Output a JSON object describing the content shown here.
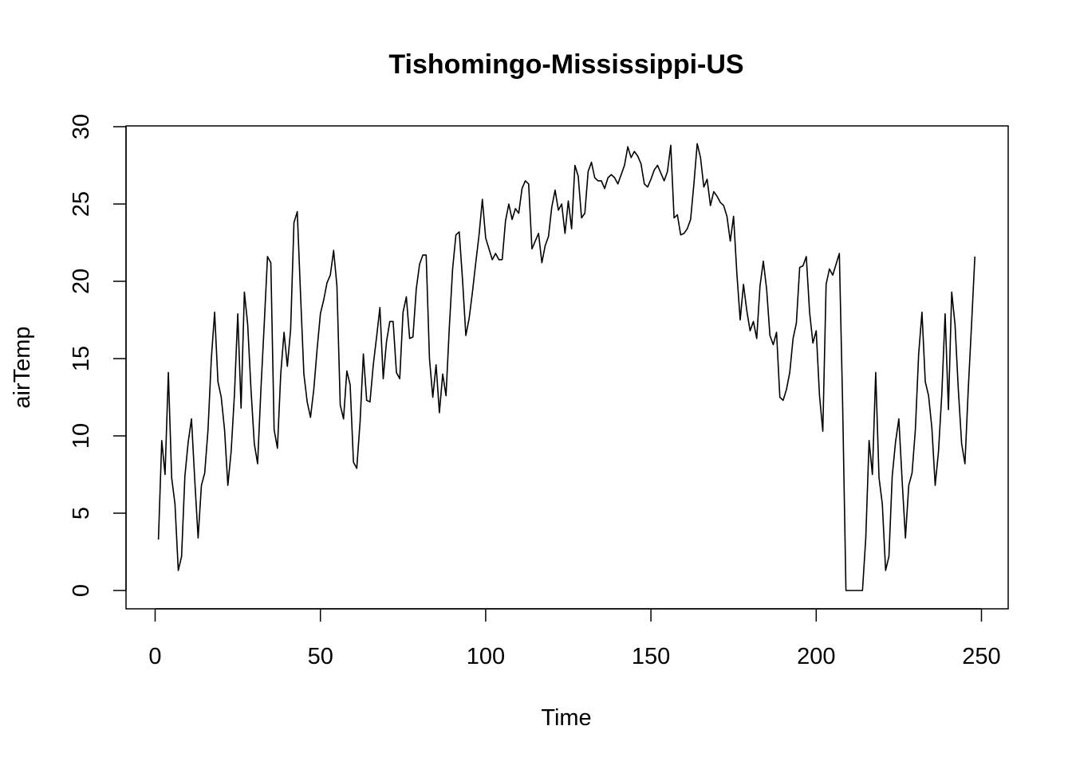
{
  "chart_data": {
    "type": "line",
    "title": "Tishomingo-Mississippi-US",
    "xlabel": "Time",
    "ylabel": "airTemp",
    "xlim": [
      1,
      248
    ],
    "ylim": [
      0,
      29
    ],
    "x_ticks": [
      0,
      50,
      100,
      150,
      200,
      250
    ],
    "y_ticks": [
      0,
      5,
      10,
      15,
      20,
      25,
      30
    ],
    "x_tick_labels": [
      "0",
      "50",
      "100",
      "150",
      "200",
      "250"
    ],
    "y_tick_labels": [
      "0",
      "5",
      "10",
      "15",
      "20",
      "25",
      "30"
    ],
    "grid": false,
    "legend": false,
    "line_color": "#000000",
    "series": [
      {
        "x_start": 1,
        "x_step": 1,
        "values": [
          3.3,
          9.7,
          7.5,
          14.1,
          7.3,
          5.6,
          1.3,
          2.2,
          7.4,
          9.6,
          11.1,
          7.1,
          3.4,
          6.8,
          7.6,
          10.4,
          15.0,
          18.0,
          13.5,
          12.5,
          10.4,
          6.8,
          9.0,
          12.7,
          17.9,
          11.8,
          19.3,
          17.2,
          13.0,
          9.5,
          8.2,
          13.0,
          17.2,
          21.6,
          21.2,
          10.4,
          9.2,
          14.0,
          16.7,
          14.5,
          16.9,
          23.8,
          24.5,
          19.1,
          14.0,
          12.2,
          11.2,
          13.0,
          15.6,
          17.9,
          18.8,
          19.9,
          20.4,
          22.0,
          19.7,
          12.0,
          11.1,
          14.2,
          13.3,
          8.3,
          7.9,
          10.9,
          15.3,
          12.3,
          12.2,
          14.6,
          16.4,
          18.3,
          13.7,
          16.1,
          17.4,
          17.4,
          14.1,
          13.7,
          18.0,
          19.0,
          16.3,
          16.4,
          19.5,
          21.1,
          21.7,
          21.7,
          15.0,
          12.5,
          14.6,
          11.5,
          14.0,
          12.6,
          17.0,
          20.8,
          23.0,
          23.2,
          20.1,
          16.5,
          17.6,
          19.3,
          21.2,
          23.0,
          25.3,
          22.8,
          22.1,
          21.4,
          21.8,
          21.4,
          21.4,
          23.9,
          25.0,
          24.0,
          24.7,
          24.4,
          26.0,
          26.5,
          26.3,
          22.1,
          22.6,
          23.1,
          21.2,
          22.3,
          22.9,
          24.8,
          25.9,
          24.6,
          25.0,
          23.1,
          25.2,
          23.4,
          27.5,
          26.8,
          24.1,
          24.4,
          27.1,
          27.7,
          26.7,
          26.5,
          26.5,
          26.0,
          26.7,
          26.9,
          26.7,
          26.3,
          26.9,
          27.5,
          28.7,
          28.0,
          28.4,
          28.1,
          27.6,
          26.3,
          26.1,
          26.6,
          27.2,
          27.5,
          27.0,
          26.5,
          27.1,
          28.8,
          24.1,
          24.3,
          23.0,
          23.1,
          23.4,
          24.0,
          26.3,
          28.9,
          28.0,
          26.1,
          26.6,
          24.9,
          25.8,
          25.5,
          25.1,
          24.9,
          24.2,
          22.6,
          24.2,
          20.5,
          17.5,
          19.8,
          18.1,
          16.8,
          17.4,
          16.3,
          19.7,
          21.3,
          19.5,
          16.5,
          15.9,
          16.7,
          12.5,
          12.3,
          13.0,
          14.1,
          16.3,
          17.3,
          20.9,
          21.0,
          21.6,
          18.0,
          16.0,
          16.8,
          12.6,
          10.3,
          19.8,
          20.8,
          20.4,
          21.1,
          21.8,
          12.0,
          0.0,
          0.0,
          0.0,
          0.0,
          0.0,
          0.0,
          3.4,
          9.7,
          7.5,
          14.1,
          7.3,
          5.6,
          1.3,
          2.2,
          7.4,
          9.6,
          11.1,
          7.1,
          3.4,
          6.8,
          7.6,
          10.4,
          15.3,
          18.0,
          13.5,
          12.6,
          10.5,
          6.8,
          9.0,
          12.7,
          17.9,
          11.7,
          19.3,
          17.2,
          13.0,
          9.5,
          8.2,
          13.0,
          17.2,
          21.6
        ]
      }
    ]
  }
}
